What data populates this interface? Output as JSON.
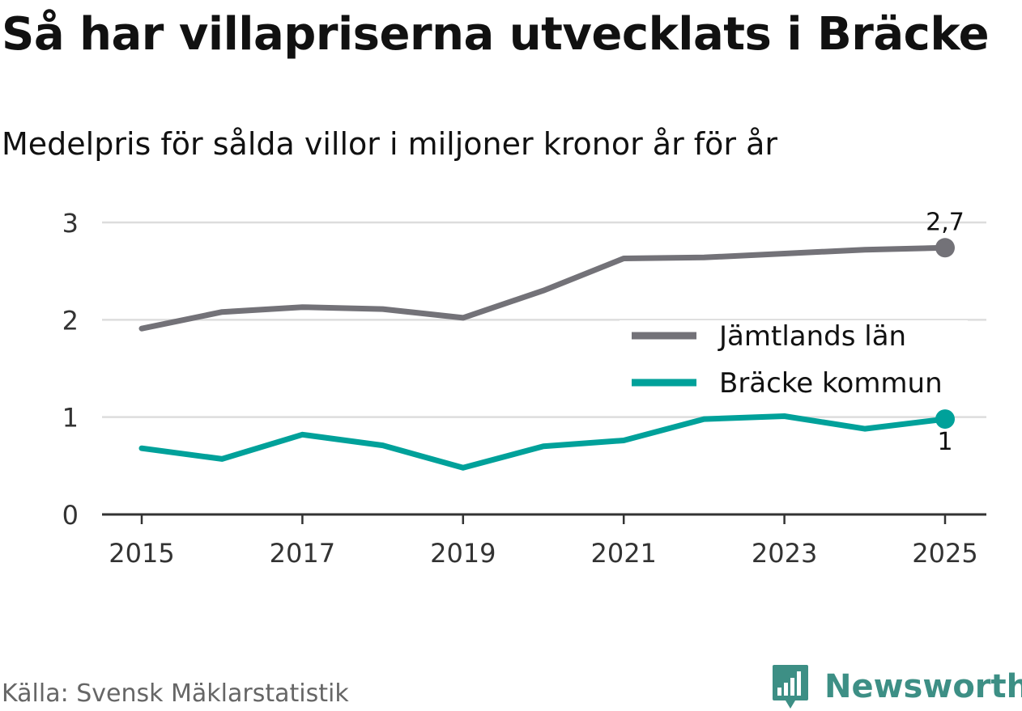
{
  "header": {
    "title": "Så har villapriserna utvecklats i Bräcke",
    "subtitle": "Medelpris för sålda villor i miljoner kronor år för år"
  },
  "footer": {
    "source": "Källa: Svensk Mäklarstatistik",
    "brand": "Newsworthy"
  },
  "colors": {
    "jamtland": "#737278",
    "bracke": "#00a19a",
    "grid": "#dddddd",
    "axis": "#333333",
    "brand": "#3d8f85"
  },
  "chart_data": {
    "type": "line",
    "title": "Så har villapriserna utvecklats i Bräcke",
    "subtitle": "Medelpris för sålda villor i miljoner kronor år för år",
    "xlabel": "",
    "ylabel": "",
    "x": [
      2015,
      2016,
      2017,
      2018,
      2019,
      2020,
      2021,
      2022,
      2023,
      2024,
      2025
    ],
    "xticks": [
      "2015",
      "2017",
      "2019",
      "2021",
      "2023",
      "2025"
    ],
    "yticks": [
      "0",
      "1",
      "2",
      "3"
    ],
    "ylim": [
      0,
      3
    ],
    "grid": true,
    "legend_position": "right",
    "series": [
      {
        "key": "jamtland",
        "name": "Jämtlands län",
        "values": [
          1.91,
          2.08,
          2.13,
          2.11,
          2.02,
          2.3,
          2.63,
          2.64,
          2.68,
          2.72,
          2.74
        ],
        "end_label": "2,7"
      },
      {
        "key": "bracke",
        "name": "Bräcke kommun",
        "values": [
          0.68,
          0.57,
          0.82,
          0.71,
          0.48,
          0.7,
          0.76,
          0.98,
          1.01,
          0.88,
          0.98
        ],
        "end_label": "1"
      }
    ]
  }
}
